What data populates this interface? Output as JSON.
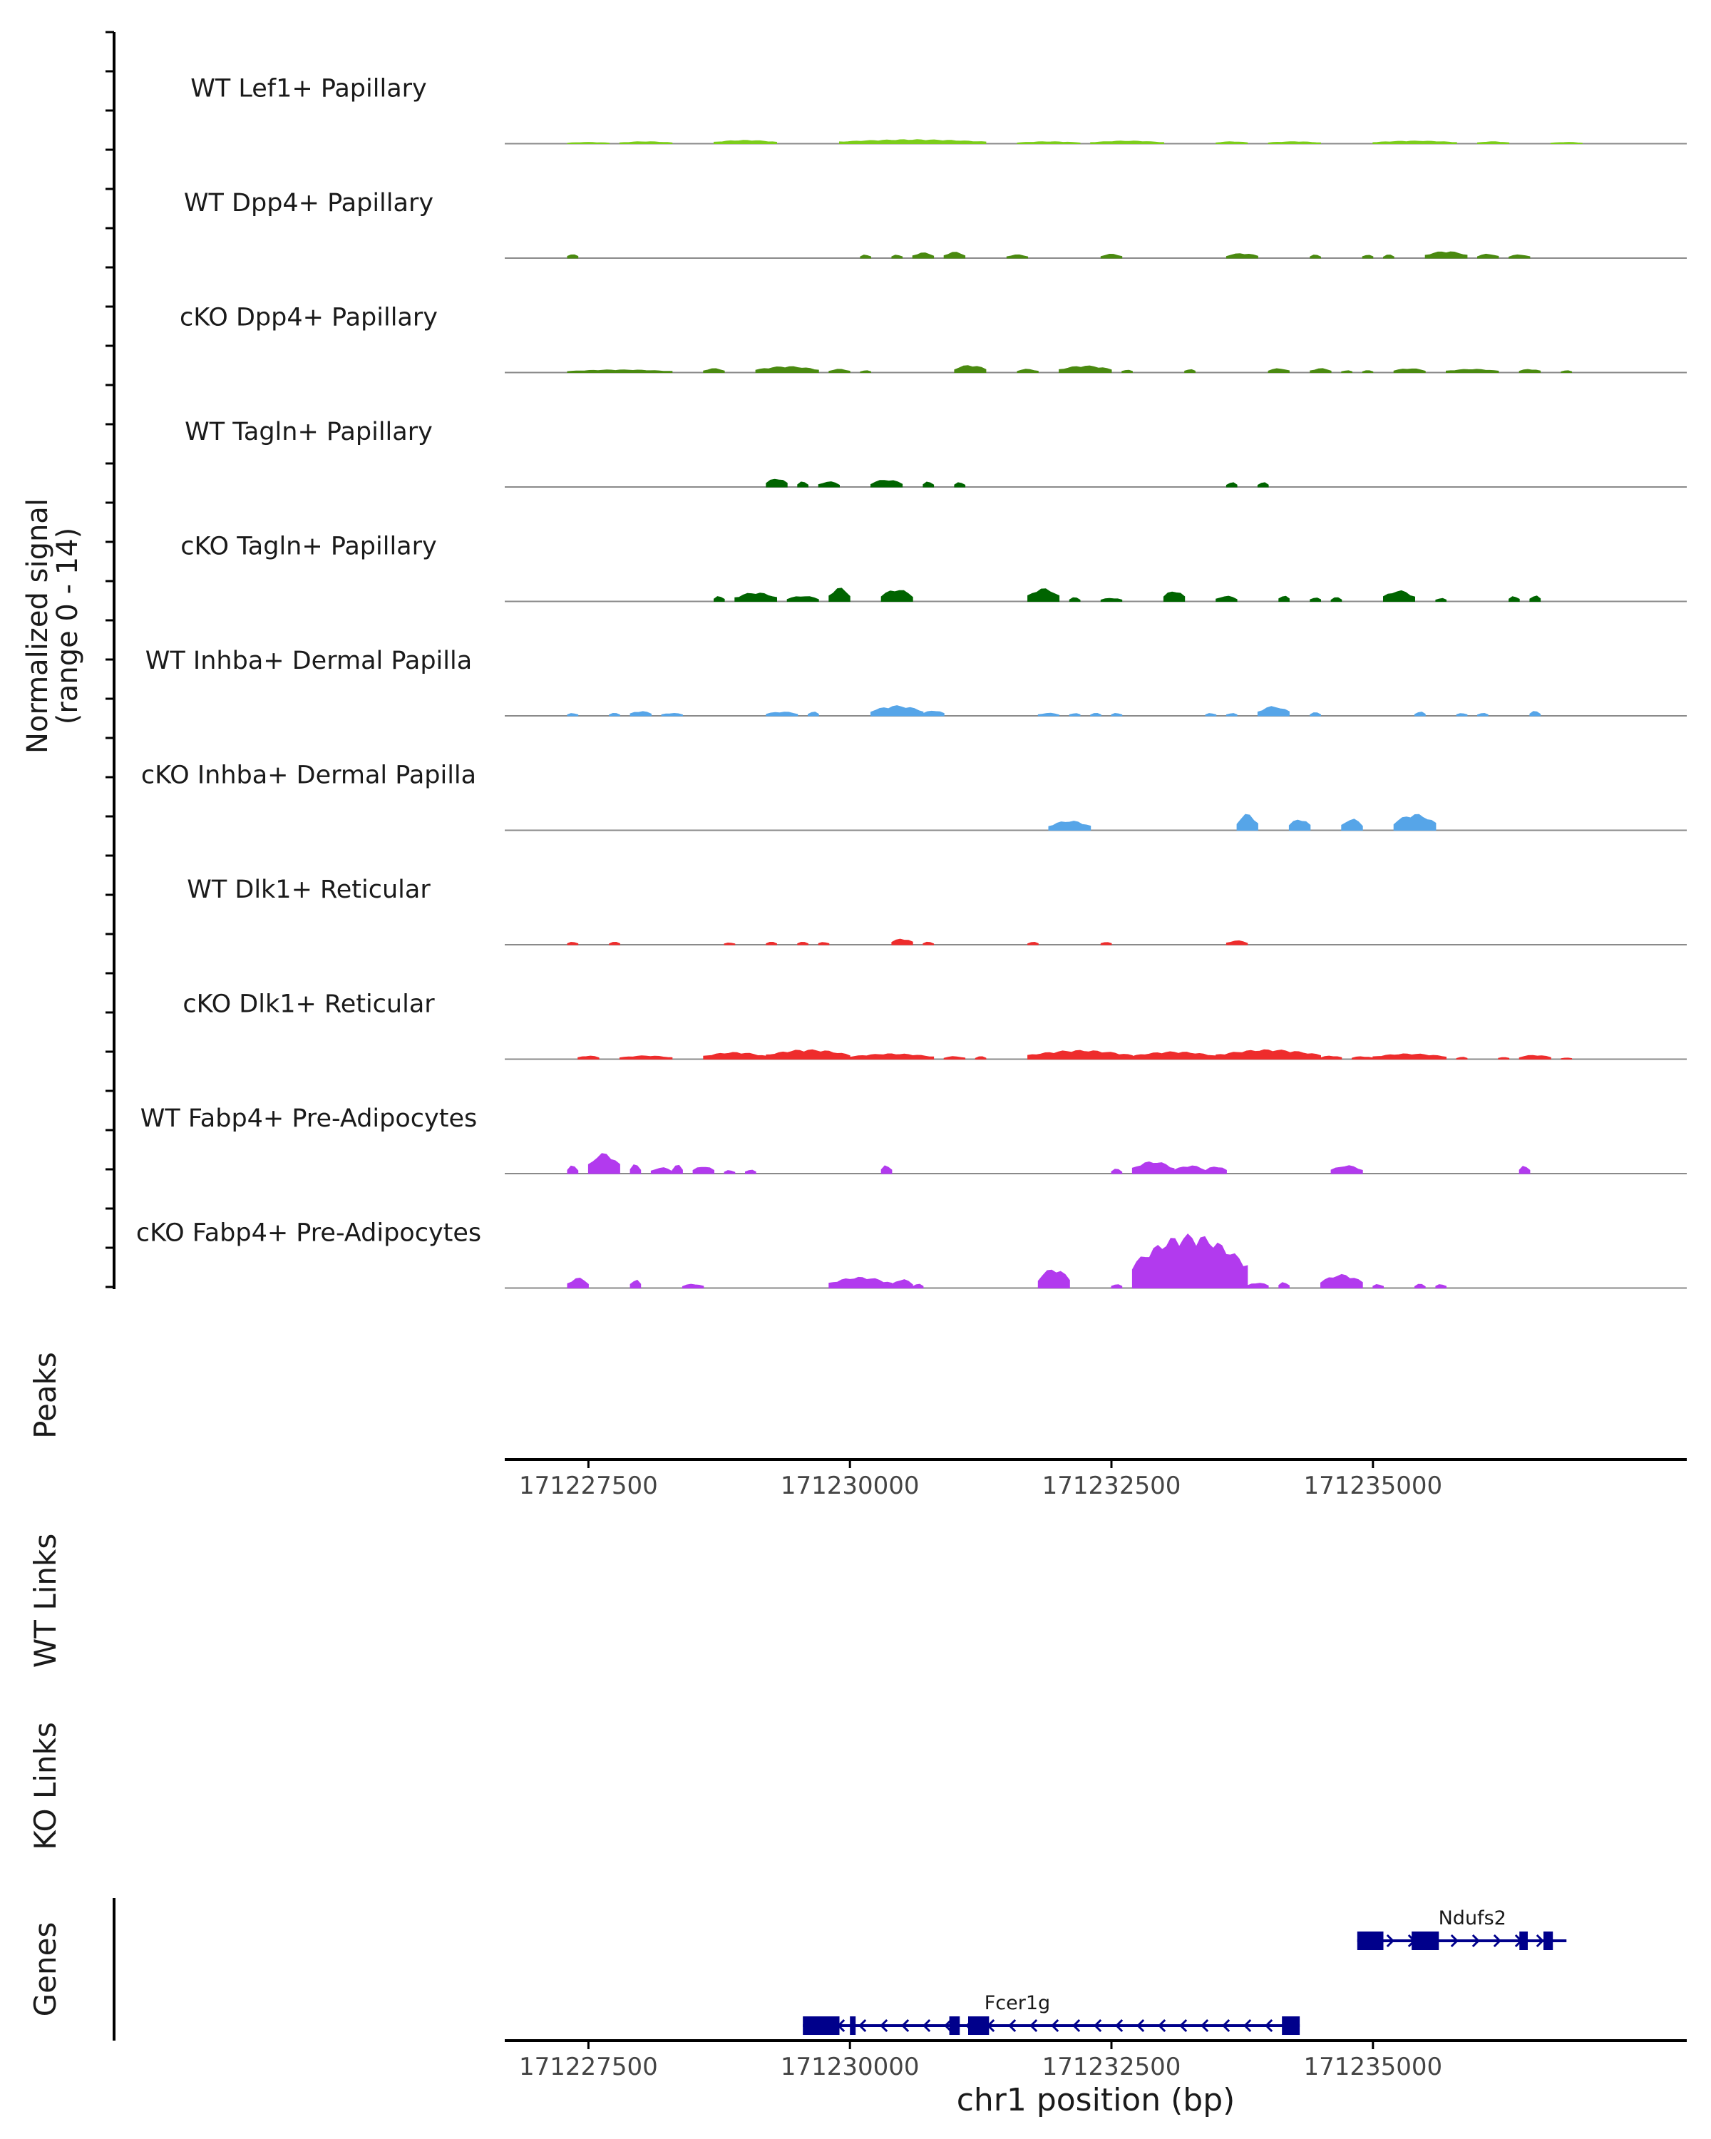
{
  "chart_data": {
    "type": "area",
    "title": "",
    "region": {
      "chrom": "chr1",
      "start": 171226700,
      "end": 171238000
    },
    "signal_axis": {
      "ylabel_line1": "Normalized signal",
      "ylabel_line2": "(range 0 - 14)",
      "ylim": [
        0,
        14
      ]
    },
    "section_labels": {
      "peaks": "Peaks",
      "wt_links": "WT Links",
      "ko_links": "KO Links",
      "genes": "Genes"
    },
    "xaxis": {
      "xlabel": "chr1 position (bp)",
      "ticks": [
        171227500,
        171230000,
        171232500,
        171235000
      ],
      "tick_labels": [
        "171227500",
        "171230000",
        "171232500",
        "171235000"
      ]
    },
    "tracks": [
      {
        "name": "WT Lef1+ Papillary",
        "color": "#7CCD1A",
        "peaks": [
          [
            171227300,
            171227700,
            0.2
          ],
          [
            171227800,
            171228300,
            0.3
          ],
          [
            171228700,
            171229300,
            0.5
          ],
          [
            171229900,
            171231300,
            0.6
          ],
          [
            171231600,
            171232200,
            0.3
          ],
          [
            171232300,
            171233000,
            0.4
          ],
          [
            171233500,
            171233800,
            0.3
          ],
          [
            171234000,
            171234500,
            0.3
          ],
          [
            171235000,
            171235800,
            0.4
          ],
          [
            171236000,
            171236300,
            0.3
          ],
          [
            171236700,
            171237000,
            0.2
          ]
        ]
      },
      {
        "name": "WT Dpp4+ Papillary",
        "color": "#4A8A10",
        "peaks": [
          [
            171227300,
            171227400,
            0.6
          ],
          [
            171230100,
            171230200,
            0.5
          ],
          [
            171230400,
            171230500,
            0.5
          ],
          [
            171230600,
            171230800,
            0.8
          ],
          [
            171230900,
            171231100,
            0.9
          ],
          [
            171231500,
            171231700,
            0.5
          ],
          [
            171232400,
            171232600,
            0.6
          ],
          [
            171233600,
            171233900,
            0.7
          ],
          [
            171234400,
            171234500,
            0.5
          ],
          [
            171234900,
            171235000,
            0.5
          ],
          [
            171235100,
            171235200,
            0.5
          ],
          [
            171235500,
            171235900,
            1.0
          ],
          [
            171236000,
            171236200,
            0.6
          ],
          [
            171236300,
            171236500,
            0.5
          ]
        ]
      },
      {
        "name": "cKO Dpp4+ Papillary",
        "color": "#4A8A10",
        "peaks": [
          [
            171227300,
            171228300,
            0.4
          ],
          [
            171228600,
            171228800,
            0.6
          ],
          [
            171229100,
            171229700,
            0.9
          ],
          [
            171229800,
            171230000,
            0.5
          ],
          [
            171230100,
            171230200,
            0.3
          ],
          [
            171231000,
            171231300,
            1.1
          ],
          [
            171231600,
            171231800,
            0.5
          ],
          [
            171232000,
            171232500,
            1.0
          ],
          [
            171232600,
            171232700,
            0.4
          ],
          [
            171233200,
            171233300,
            0.5
          ],
          [
            171234000,
            171234200,
            0.6
          ],
          [
            171234400,
            171234600,
            0.6
          ],
          [
            171234700,
            171234800,
            0.3
          ],
          [
            171234900,
            171235000,
            0.3
          ],
          [
            171235200,
            171235500,
            0.6
          ],
          [
            171235700,
            171236200,
            0.5
          ],
          [
            171236400,
            171236600,
            0.5
          ],
          [
            171236800,
            171236900,
            0.3
          ]
        ]
      },
      {
        "name": "WT Tagln+ Papillary",
        "color": "#006400",
        "peaks": [
          [
            171229200,
            171229400,
            1.3
          ],
          [
            171229500,
            171229600,
            0.8
          ],
          [
            171229700,
            171229900,
            0.8
          ],
          [
            171230200,
            171230500,
            1.1
          ],
          [
            171230700,
            171230800,
            0.8
          ],
          [
            171231000,
            171231100,
            0.7
          ],
          [
            171233600,
            171233700,
            0.7
          ],
          [
            171233900,
            171234000,
            0.7
          ]
        ]
      },
      {
        "name": "cKO Tagln+ Papillary",
        "color": "#006400",
        "peaks": [
          [
            171228700,
            171228800,
            0.8
          ],
          [
            171228900,
            171229300,
            1.3
          ],
          [
            171229400,
            171229700,
            0.8
          ],
          [
            171229800,
            171230000,
            2.0
          ],
          [
            171230300,
            171230600,
            1.8
          ],
          [
            171231700,
            171232000,
            1.9
          ],
          [
            171232100,
            171232200,
            0.6
          ],
          [
            171232400,
            171232600,
            0.5
          ],
          [
            171233000,
            171233200,
            1.6
          ],
          [
            171233500,
            171233700,
            0.8
          ],
          [
            171234100,
            171234200,
            0.9
          ],
          [
            171234400,
            171234500,
            0.6
          ],
          [
            171234600,
            171234700,
            0.6
          ],
          [
            171235100,
            171235400,
            1.6
          ],
          [
            171235600,
            171235700,
            0.5
          ],
          [
            171236300,
            171236400,
            0.8
          ],
          [
            171236500,
            171236600,
            0.9
          ]
        ]
      },
      {
        "name": "WT Inhba+ Dermal Papilla",
        "color": "#56A5E8",
        "peaks": [
          [
            171227300,
            171227400,
            0.4
          ],
          [
            171227700,
            171227800,
            0.4
          ],
          [
            171227900,
            171228100,
            0.7
          ],
          [
            171228200,
            171228400,
            0.4
          ],
          [
            171229200,
            171229500,
            0.6
          ],
          [
            171229600,
            171229700,
            0.6
          ],
          [
            171230200,
            171230700,
            1.5
          ],
          [
            171230700,
            171230900,
            0.8
          ],
          [
            171231800,
            171232000,
            0.4
          ],
          [
            171232100,
            171232200,
            0.4
          ],
          [
            171232300,
            171232400,
            0.4
          ],
          [
            171232500,
            171232600,
            0.4
          ],
          [
            171233400,
            171233500,
            0.4
          ],
          [
            171233600,
            171233700,
            0.4
          ],
          [
            171233900,
            171234200,
            1.4
          ],
          [
            171234400,
            171234500,
            0.5
          ],
          [
            171235400,
            171235500,
            0.6
          ],
          [
            171235800,
            171235900,
            0.4
          ],
          [
            171236000,
            171236100,
            0.4
          ],
          [
            171236500,
            171236600,
            0.7
          ]
        ]
      },
      {
        "name": "cKO Inhba+ Dermal Papilla",
        "color": "#56A5E8",
        "peaks": [
          [
            171231900,
            171232300,
            1.4
          ],
          [
            171233700,
            171233900,
            2.4
          ],
          [
            171234200,
            171234400,
            1.7
          ],
          [
            171234700,
            171234900,
            1.7
          ],
          [
            171235200,
            171235600,
            2.4
          ]
        ]
      },
      {
        "name": "WT Dlk1+ Reticular",
        "color": "#EE2C2C",
        "peaks": [
          [
            171227300,
            171227400,
            0.4
          ],
          [
            171227700,
            171227800,
            0.4
          ],
          [
            171228800,
            171228900,
            0.3
          ],
          [
            171229200,
            171229300,
            0.4
          ],
          [
            171229500,
            171229600,
            0.4
          ],
          [
            171229700,
            171229800,
            0.4
          ],
          [
            171230400,
            171230600,
            0.9
          ],
          [
            171230700,
            171230800,
            0.4
          ],
          [
            171231700,
            171231800,
            0.4
          ],
          [
            171232400,
            171232500,
            0.4
          ],
          [
            171233600,
            171233800,
            0.6
          ]
        ]
      },
      {
        "name": "cKO Dlk1+ Reticular",
        "color": "#EE2C2C",
        "peaks": [
          [
            171227400,
            171227600,
            0.5
          ],
          [
            171227800,
            171228300,
            0.5
          ],
          [
            171228600,
            171229200,
            1.0
          ],
          [
            171229200,
            171230000,
            1.4
          ],
          [
            171230000,
            171230800,
            0.8
          ],
          [
            171230900,
            171231100,
            0.4
          ],
          [
            171231200,
            171231300,
            0.4
          ],
          [
            171231700,
            171232700,
            1.3
          ],
          [
            171232700,
            171233500,
            1.1
          ],
          [
            171233500,
            171234500,
            1.4
          ],
          [
            171234500,
            171234700,
            0.5
          ],
          [
            171234800,
            171235000,
            0.4
          ],
          [
            171235000,
            171235700,
            0.8
          ],
          [
            171235800,
            171235900,
            0.3
          ],
          [
            171236200,
            171236300,
            0.3
          ],
          [
            171236400,
            171236700,
            0.6
          ],
          [
            171236800,
            171236900,
            0.2
          ]
        ]
      },
      {
        "name": "WT Fabp4+ Pre-Adipocytes",
        "color": "#B23AEE",
        "peaks": [
          [
            171227300,
            171227400,
            1.2
          ],
          [
            171227500,
            171227800,
            3.0
          ],
          [
            171227900,
            171228000,
            1.4
          ],
          [
            171228100,
            171228300,
            0.9
          ],
          [
            171228300,
            171228400,
            1.3
          ],
          [
            171228500,
            171228700,
            1.1
          ],
          [
            171228800,
            171228900,
            0.5
          ],
          [
            171229000,
            171229100,
            0.6
          ],
          [
            171230300,
            171230400,
            1.3
          ],
          [
            171232500,
            171232600,
            0.7
          ],
          [
            171232700,
            171233100,
            1.8
          ],
          [
            171233100,
            171233400,
            1.2
          ],
          [
            171233400,
            171233600,
            1.1
          ],
          [
            171234600,
            171234900,
            1.2
          ],
          [
            171236400,
            171236500,
            1.2
          ]
        ]
      },
      {
        "name": "cKO Fabp4+ Pre-Adipocytes",
        "color": "#B23AEE",
        "peaks": [
          [
            171227300,
            171227500,
            1.5
          ],
          [
            171227900,
            171228000,
            1.3
          ],
          [
            171228400,
            171228600,
            0.6
          ],
          [
            171229800,
            171230400,
            1.6
          ],
          [
            171230400,
            171230600,
            1.3
          ],
          [
            171230600,
            171230700,
            0.6
          ],
          [
            171231800,
            171232100,
            2.9
          ],
          [
            171232500,
            171232600,
            0.6
          ],
          [
            171232700,
            171233800,
            7.9
          ],
          [
            171233800,
            171234000,
            0.8
          ],
          [
            171234100,
            171234200,
            0.9
          ],
          [
            171234500,
            171234900,
            2.0
          ],
          [
            171235000,
            171235100,
            0.6
          ],
          [
            171235400,
            171235500,
            0.6
          ],
          [
            171235600,
            171235700,
            0.6
          ]
        ]
      }
    ],
    "genes": [
      {
        "name": "Ndufs2",
        "strand": "+",
        "start": 171234850,
        "end": 171236850,
        "exons": [
          [
            171234850,
            171235100
          ],
          [
            171235370,
            171235630
          ],
          [
            171236400,
            171236480
          ],
          [
            171236630,
            171236720
          ]
        ]
      },
      {
        "name": "Fcer1g",
        "strand": "-",
        "start": 171229550,
        "end": 171234300,
        "exons": [
          [
            171229550,
            171229900
          ],
          [
            171230000,
            171230030
          ],
          [
            171230950,
            171231050
          ],
          [
            171231130,
            171231330
          ],
          [
            171234130,
            171234300
          ]
        ]
      }
    ]
  }
}
